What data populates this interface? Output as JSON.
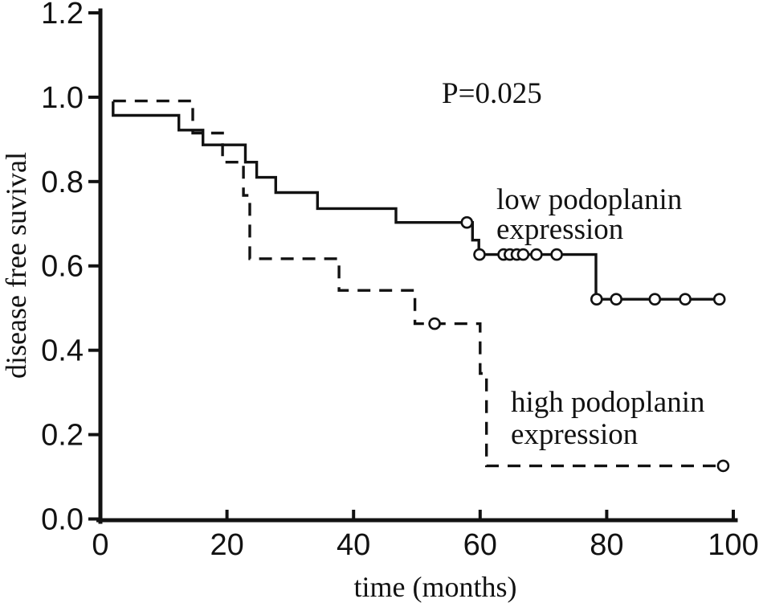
{
  "figure": {
    "background_color": "#ffffff",
    "ink_color": "#121212"
  },
  "chart_data": {
    "type": "line",
    "subtype": "kaplan-meier-step-curves",
    "title": "",
    "xlabel": "time (months)",
    "ylabel": "disease free suvival",
    "annotation": "P=0.025",
    "xlim": [
      0,
      100
    ],
    "ylim": [
      0,
      1.2
    ],
    "x_ticks": [
      "0",
      "20",
      "40",
      "60",
      "80",
      "100"
    ],
    "y_ticks": [
      "0.0",
      "0.2",
      "0.4",
      "0.6",
      "0.8",
      "1.0",
      "1.2"
    ],
    "grid": false,
    "legend_position": "inline-curve-labels",
    "censor_marker": "open-circle",
    "series": [
      {
        "name": "low podoplanin expression",
        "line_style": "solid",
        "label_lines": [
          "low podoplanin",
          "expression"
        ],
        "steps": [
          [
            2,
            0.99
          ],
          [
            2,
            0.957
          ],
          [
            12.4,
            0.922
          ],
          [
            16.2,
            0.887
          ],
          [
            22.9,
            0.846
          ],
          [
            24.7,
            0.81
          ],
          [
            27.7,
            0.774
          ],
          [
            34.3,
            0.736
          ],
          [
            46.7,
            0.703
          ],
          [
            58.8,
            0.661
          ],
          [
            59.8,
            0.627
          ],
          [
            78.3,
            0.521
          ],
          [
            97.8,
            0.521
          ]
        ],
        "censor_marks": [
          [
            57.9,
            0.703
          ],
          [
            59.9,
            0.627
          ],
          [
            63.7,
            0.627
          ],
          [
            64.7,
            0.627
          ],
          [
            65.8,
            0.627
          ],
          [
            66.8,
            0.627
          ],
          [
            68.9,
            0.627
          ],
          [
            72.1,
            0.627
          ],
          [
            78.4,
            0.521
          ],
          [
            81.5,
            0.521
          ],
          [
            87.6,
            0.521
          ],
          [
            92.4,
            0.521
          ],
          [
            97.8,
            0.521
          ]
        ]
      },
      {
        "name": "high podoplanin expression",
        "line_style": "dashed",
        "label_lines": [
          "high podoplanin",
          "expression"
        ],
        "steps": [
          [
            2,
            0.991
          ],
          [
            14.6,
            0.915
          ],
          [
            19.3,
            0.846
          ],
          [
            22.6,
            0.767
          ],
          [
            23.6,
            0.617
          ],
          [
            37.7,
            0.542
          ],
          [
            49.7,
            0.463
          ],
          [
            60,
            0.345
          ],
          [
            61,
            0.126
          ],
          [
            99.3,
            0.126
          ]
        ],
        "censor_marks": [
          [
            52.8,
            0.463
          ],
          [
            98.4,
            0.126
          ]
        ]
      }
    ]
  }
}
